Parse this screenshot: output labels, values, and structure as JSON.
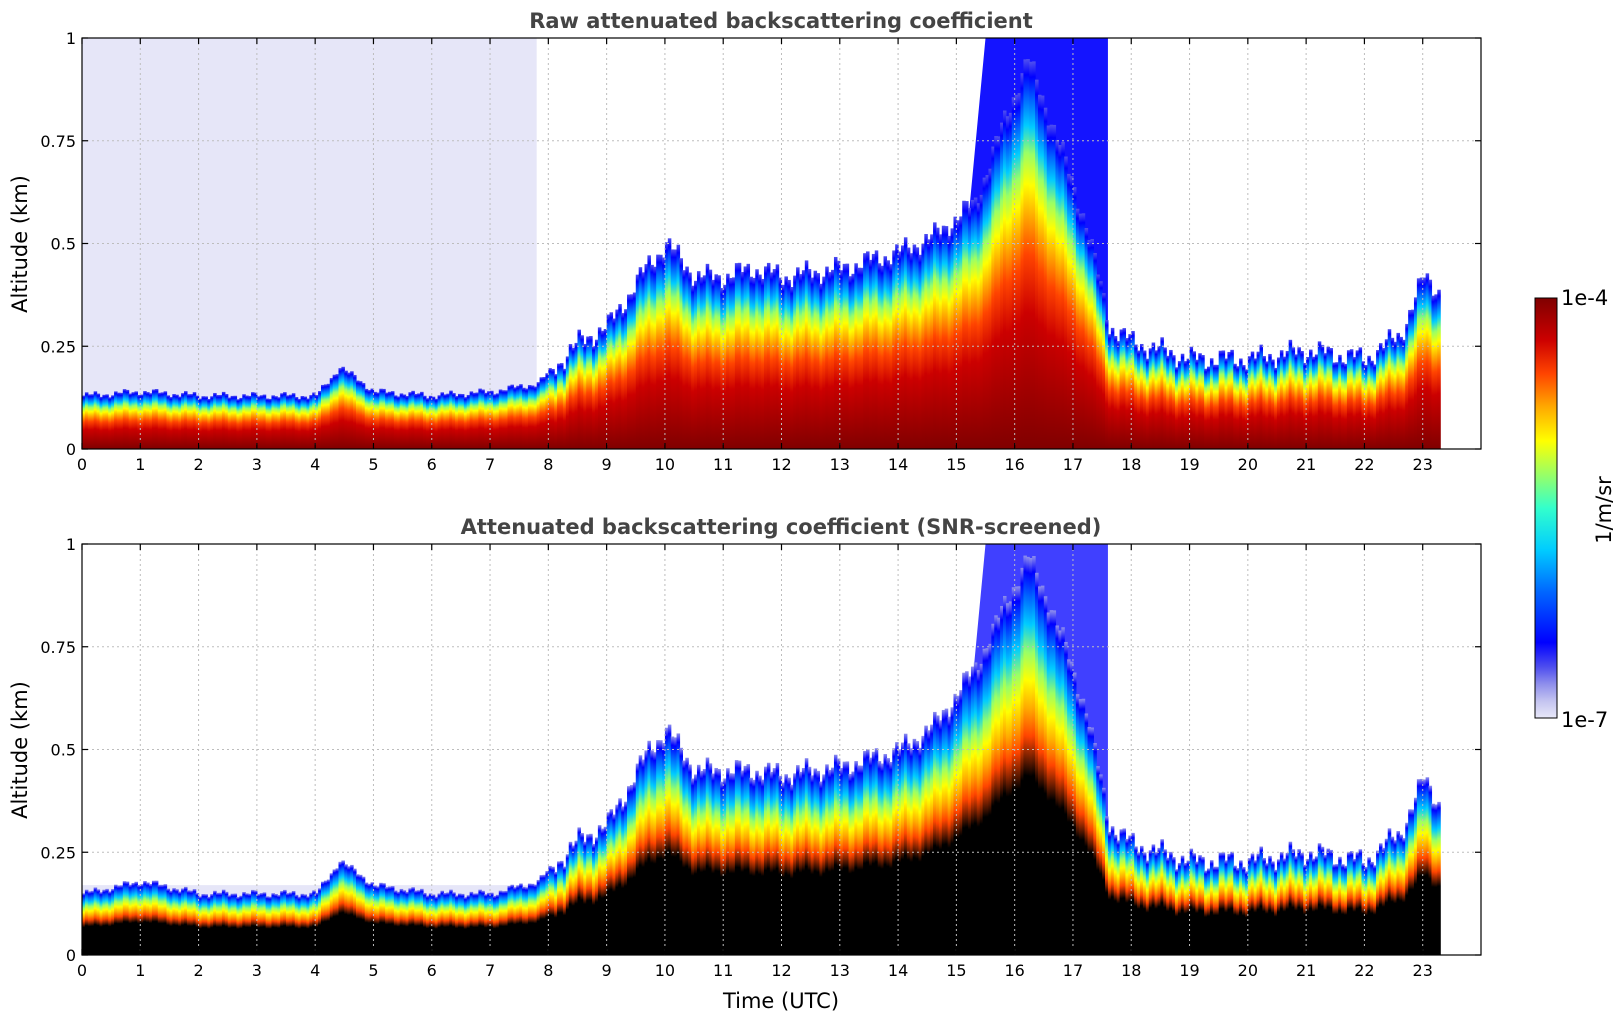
{
  "chart_data": [
    {
      "type": "heatmap",
      "title": "Raw attenuated backscattering coefficient",
      "xlabel": "",
      "ylabel": "Altitude (km)",
      "xlim": [
        0,
        24
      ],
      "ylim": [
        0,
        1
      ],
      "x_ticks": [
        "0",
        "1",
        "2",
        "3",
        "4",
        "5",
        "6",
        "7",
        "8",
        "9",
        "10",
        "11",
        "12",
        "13",
        "14",
        "15",
        "16",
        "17",
        "18",
        "19",
        "20",
        "21",
        "22",
        "23"
      ],
      "y_ticks": [
        "0",
        "0.25",
        "0.5",
        "0.75",
        "1"
      ],
      "grid": true,
      "data_end_time": 23.3,
      "layer_top_km": [
        [
          0,
          0.13
        ],
        [
          1,
          0.14
        ],
        [
          2,
          0.13
        ],
        [
          3,
          0.13
        ],
        [
          4,
          0.13
        ],
        [
          4.4,
          0.2
        ],
        [
          5,
          0.14
        ],
        [
          6,
          0.13
        ],
        [
          7,
          0.14
        ],
        [
          7.8,
          0.16
        ],
        [
          8.5,
          0.26
        ],
        [
          9,
          0.3
        ],
        [
          9.7,
          0.45
        ],
        [
          10,
          0.5
        ],
        [
          10.5,
          0.42
        ],
        [
          11,
          0.42
        ],
        [
          11.5,
          0.44
        ],
        [
          12,
          0.42
        ],
        [
          13,
          0.44
        ],
        [
          14,
          0.48
        ],
        [
          14.6,
          0.52
        ],
        [
          15.3,
          0.6
        ],
        [
          15.8,
          0.8
        ],
        [
          16.2,
          0.95
        ],
        [
          16.6,
          0.8
        ],
        [
          17.2,
          0.55
        ],
        [
          17.6,
          0.3
        ],
        [
          18,
          0.26
        ],
        [
          19,
          0.22
        ],
        [
          20,
          0.22
        ],
        [
          21,
          0.24
        ],
        [
          22,
          0.22
        ],
        [
          22.6,
          0.28
        ],
        [
          23,
          0.42
        ],
        [
          23.3,
          0.38
        ]
      ],
      "colorbar": {
        "min_label": "1e-7",
        "max_label": "1e-4",
        "label": "1/m/sr"
      }
    },
    {
      "type": "heatmap",
      "title": "Attenuated backscattering coefficient (SNR-screened)",
      "xlabel": "Time (UTC)",
      "ylabel": "Altitude (km)",
      "xlim": [
        0,
        24
      ],
      "ylim": [
        0,
        1
      ],
      "x_ticks": [
        "0",
        "1",
        "2",
        "3",
        "4",
        "5",
        "6",
        "7",
        "8",
        "9",
        "10",
        "11",
        "12",
        "13",
        "14",
        "15",
        "16",
        "17",
        "18",
        "19",
        "20",
        "21",
        "22",
        "23"
      ],
      "y_ticks": [
        "0",
        "0.25",
        "0.5",
        "0.75",
        "1"
      ],
      "grid": true,
      "data_end_time": 23.3,
      "layer_top_km": [
        [
          0,
          0.15
        ],
        [
          1,
          0.18
        ],
        [
          2,
          0.15
        ],
        [
          3,
          0.15
        ],
        [
          4,
          0.15
        ],
        [
          4.4,
          0.23
        ],
        [
          5,
          0.17
        ],
        [
          6,
          0.15
        ],
        [
          7,
          0.15
        ],
        [
          7.8,
          0.18
        ],
        [
          8.5,
          0.28
        ],
        [
          9,
          0.32
        ],
        [
          9.7,
          0.5
        ],
        [
          10,
          0.55
        ],
        [
          10.5,
          0.45
        ],
        [
          11,
          0.45
        ],
        [
          11.5,
          0.45
        ],
        [
          12,
          0.44
        ],
        [
          13,
          0.46
        ],
        [
          14,
          0.5
        ],
        [
          14.6,
          0.56
        ],
        [
          15.3,
          0.7
        ],
        [
          15.8,
          0.85
        ],
        [
          16.2,
          0.97
        ],
        [
          16.6,
          0.85
        ],
        [
          17.2,
          0.6
        ],
        [
          17.6,
          0.32
        ],
        [
          18,
          0.27
        ],
        [
          19,
          0.23
        ],
        [
          20,
          0.23
        ],
        [
          21,
          0.25
        ],
        [
          22,
          0.23
        ],
        [
          22.6,
          0.3
        ],
        [
          23,
          0.43
        ],
        [
          23.3,
          0.36
        ]
      ],
      "colorbar": {
        "min_label": "1e-7",
        "max_label": "1e-4",
        "label": "1/m/sr"
      }
    }
  ],
  "colors": {
    "background_fill": "#e6e6f8",
    "grid": "#bdbdbd",
    "title": "#444444",
    "colormap": [
      "#e8e8f8",
      "#c4c4f0",
      "#9090ec",
      "#5050ee",
      "#0000ff",
      "#0066ff",
      "#00ccff",
      "#33ffcc",
      "#99ff66",
      "#ffff00",
      "#ffaa00",
      "#ff4400",
      "#cc0000",
      "#800000"
    ],
    "saturated_screened": "#000000"
  }
}
